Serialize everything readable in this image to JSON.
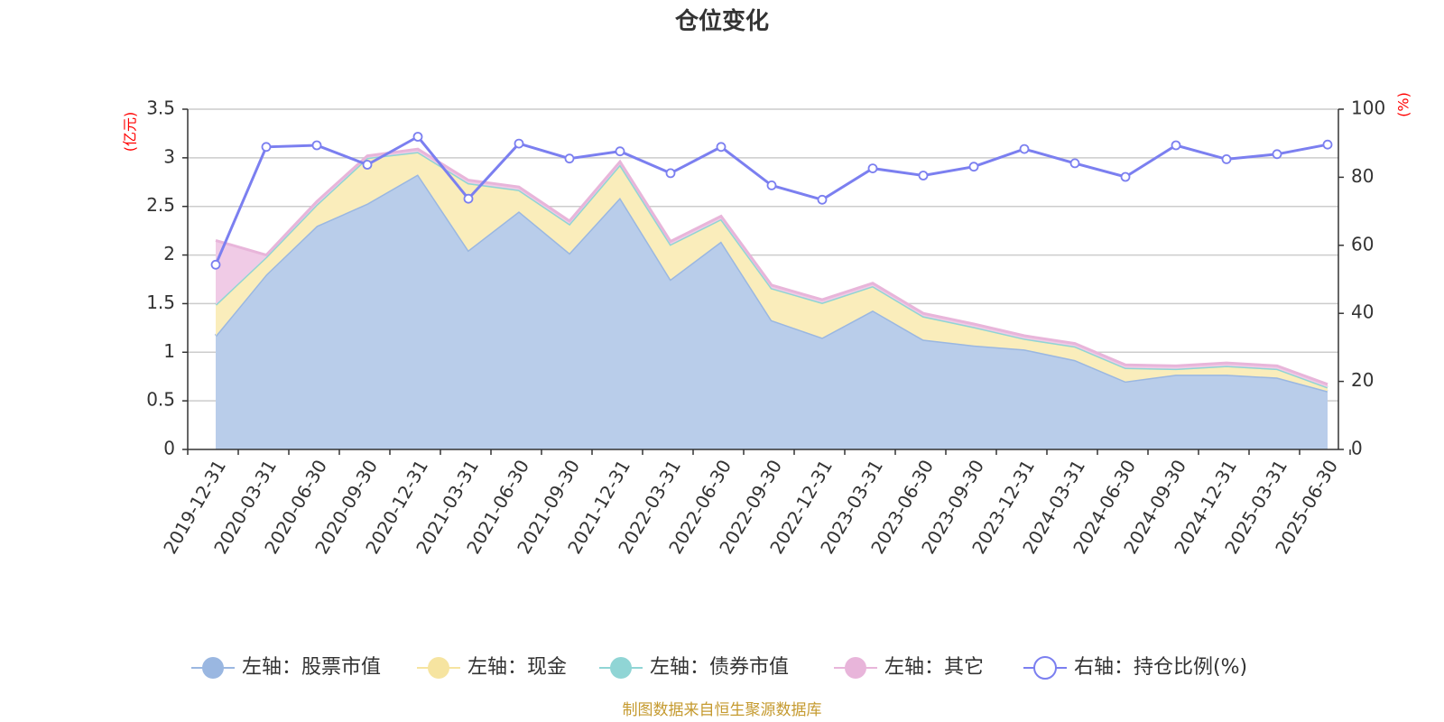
{
  "title": "仓位变化",
  "source_note": "制图数据来自恒生聚源数据库",
  "left_unit": "(亿元)",
  "right_unit": "(%)",
  "chart_data": {
    "type": "area",
    "title": "仓位变化",
    "x": [
      "2019-12-31",
      "2020-03-31",
      "2020-06-30",
      "2020-09-30",
      "2020-12-31",
      "2021-03-31",
      "2021-06-30",
      "2021-09-30",
      "2021-12-31",
      "2022-03-31",
      "2022-06-30",
      "2022-09-30",
      "2022-12-31",
      "2023-03-31",
      "2023-06-30",
      "2023-09-30",
      "2023-12-31",
      "2024-03-31",
      "2024-06-30",
      "2024-09-30",
      "2024-12-31",
      "2025-03-31",
      "2025-06-30"
    ],
    "left_axis": {
      "unit": "亿元",
      "ylim": [
        0,
        3.5
      ],
      "ticks": [
        "0",
        "0.5",
        "1",
        "1.5",
        "2",
        "2.5",
        "3",
        "3.5"
      ]
    },
    "right_axis": {
      "unit": "%",
      "ylim": [
        0,
        100
      ],
      "ticks": [
        "0",
        "20",
        "40",
        "60",
        "80",
        "100"
      ]
    },
    "grid": true,
    "legend_position": "bottom",
    "series": [
      {
        "name": "左轴：股票市值",
        "axis": "left",
        "type": "stacked-area",
        "color": "#9ab7e1",
        "fill": "#b9cdea",
        "values": [
          1.17,
          1.8,
          2.3,
          2.53,
          2.83,
          2.05,
          2.45,
          2.02,
          2.59,
          1.75,
          2.14,
          1.33,
          1.15,
          1.43,
          1.13,
          1.07,
          1.03,
          0.92,
          0.7,
          0.77,
          0.77,
          0.74,
          0.6
        ]
      },
      {
        "name": "左轴：现金",
        "axis": "left",
        "type": "stacked-area",
        "color": "#f6e4a0",
        "fill": "#faedbb",
        "values": [
          0.32,
          0.18,
          0.22,
          0.47,
          0.23,
          0.69,
          0.22,
          0.3,
          0.34,
          0.36,
          0.23,
          0.33,
          0.36,
          0.25,
          0.24,
          0.19,
          0.11,
          0.14,
          0.14,
          0.06,
          0.09,
          0.09,
          0.04
        ]
      },
      {
        "name": "左轴：债券市值",
        "axis": "left",
        "type": "stacked-area",
        "color": "#90d5d5",
        "fill": "#b7e5e5",
        "values": [
          0,
          0,
          0,
          0,
          0,
          0,
          0,
          0,
          0,
          0,
          0,
          0,
          0,
          0,
          0,
          0,
          0,
          0,
          0,
          0,
          0,
          0,
          0
        ]
      },
      {
        "name": "左轴：其它",
        "axis": "left",
        "type": "stacked-area",
        "color": "#e8b5da",
        "fill": "#f0cbe6",
        "values": [
          0.66,
          0.02,
          0.03,
          0.02,
          0.03,
          0.03,
          0.03,
          0.03,
          0.03,
          0.03,
          0.03,
          0.03,
          0.03,
          0.03,
          0.03,
          0.03,
          0.03,
          0.03,
          0.03,
          0.03,
          0.03,
          0.03,
          0.03
        ]
      },
      {
        "name": "右轴：持仓比例(%)",
        "axis": "right",
        "type": "line",
        "color": "#7b7ff0",
        "values": [
          54.3,
          88.9,
          89.4,
          83.7,
          91.9,
          73.7,
          89.9,
          85.5,
          87.6,
          81.2,
          88.9,
          77.6,
          73.4,
          82.6,
          80.5,
          83.1,
          88.3,
          84.1,
          80.1,
          89.4,
          85.3,
          86.8,
          89.6
        ]
      }
    ]
  }
}
